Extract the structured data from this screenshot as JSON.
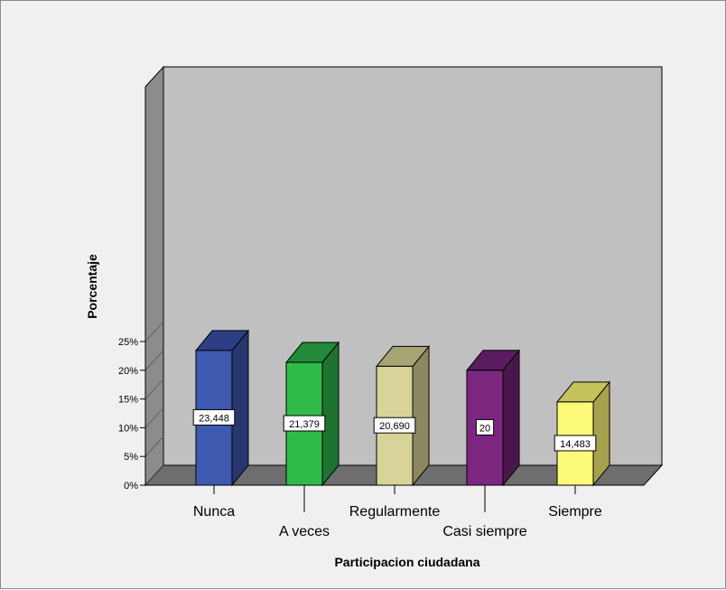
{
  "chart_data": {
    "type": "bar",
    "title": "",
    "xlabel": "Participacion ciudadana",
    "ylabel": "Porcentaje",
    "categories": [
      "Nunca",
      "A veces",
      "Regularmente",
      "Casi siempre",
      "Siempre"
    ],
    "values": [
      23.448,
      21.379,
      20.69,
      20,
      14.483
    ],
    "value_labels": [
      "23,448",
      "21,379",
      "20,690",
      "20",
      "14,483"
    ],
    "yticks": [
      0,
      5,
      10,
      15,
      20,
      25
    ],
    "ytick_labels": [
      "0%",
      "5%",
      "10%",
      "15%",
      "20%",
      "25%"
    ],
    "ylim": [
      0,
      25
    ],
    "grid": false,
    "style": "3d-bar",
    "colors": {
      "front": [
        "#3f58b0",
        "#2fba4a",
        "#d8d398",
        "#7b2780",
        "#fdfa7a"
      ],
      "side": [
        "#28376f",
        "#1f7331",
        "#8b8860",
        "#4a174c",
        "#a6a24e"
      ],
      "top": [
        "#2c3f86",
        "#228a38",
        "#a8a474",
        "#5a1c5e",
        "#c6c35c"
      ],
      "wall": "#c0c0c0",
      "side_wall": "#8c8c8c",
      "floor": "#6e6e6e",
      "background": "#f0f0f0"
    }
  }
}
